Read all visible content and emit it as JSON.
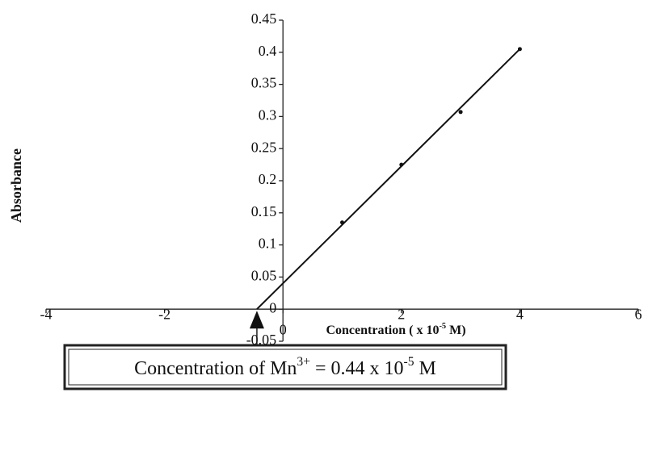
{
  "chart_data": {
    "type": "scatter",
    "y_label": "Absorbance",
    "x_label": [
      "Concentration ( x 10",
      "-5",
      " M)"
    ],
    "annotation": [
      "Concentration of Mn",
      "3+",
      " = 0.44 x 10",
      "-5",
      " M"
    ],
    "x": [
      1,
      2,
      3,
      4
    ],
    "values": [
      0.135,
      0.225,
      0.307,
      0.405
    ],
    "color": "#111111",
    "trendline": {
      "x": [
        -0.44,
        4
      ],
      "y": [
        0,
        0.405
      ]
    },
    "annotation_x": -0.44,
    "xlim": [
      -4,
      6
    ],
    "xticks": [
      -4,
      -2,
      0,
      2,
      4,
      6
    ],
    "ylim": [
      -0.05,
      0.45
    ],
    "yticks": [
      -0.05,
      0,
      0.05,
      0.1,
      0.15,
      0.2,
      0.25,
      0.3,
      0.35,
      0.4,
      0.45
    ],
    "grid": false
  }
}
